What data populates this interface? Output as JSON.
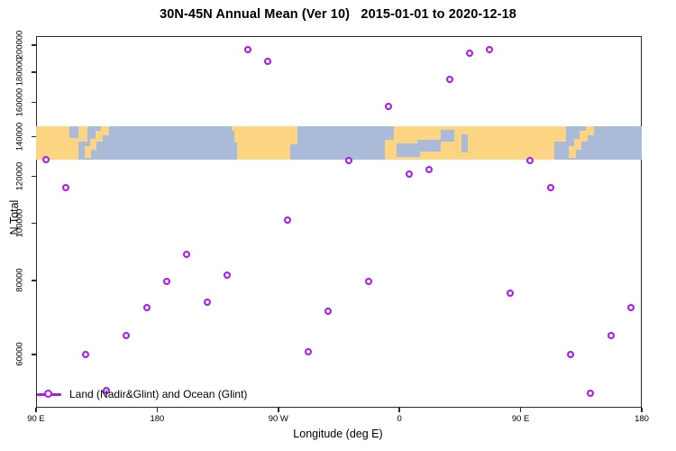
{
  "chart_data": {
    "type": "scatter",
    "title": "30N-45N Annual Mean (Ver 10)   2015-01-01 to 2020-12-18",
    "xlabel": "Longitude (deg E)",
    "ylabel": "N Total",
    "y_scale": "log",
    "grid": false,
    "xlim_unrolled_deg": [
      90,
      540
    ],
    "ylim": [
      48800,
      207200
    ],
    "x_ticks": [
      {
        "lon": 90,
        "label": "90 E"
      },
      {
        "lon": 180,
        "label": "180"
      },
      {
        "lon": 270,
        "label": "90 W"
      },
      {
        "lon": 360,
        "label": "0"
      },
      {
        "lon": 450,
        "label": "90 E"
      },
      {
        "lon": 540,
        "label": "180"
      }
    ],
    "y_ticks": [
      {
        "value": 200000,
        "label": "200000"
      },
      {
        "value": 180000,
        "label": "180000"
      },
      {
        "value": 160000,
        "label": "160000"
      },
      {
        "value": 140000,
        "label": "140000"
      },
      {
        "value": 120000,
        "label": "120000"
      },
      {
        "value": 100000,
        "label": "100000"
      },
      {
        "value": 80000,
        "label": "80000"
      },
      {
        "value": 60000,
        "label": "60000"
      }
    ],
    "legend": {
      "label": "Land (Nadir&Glint) and Ocean (Glint)",
      "position": "bottom-left",
      "marker": "open-circle-on-line"
    },
    "series": [
      {
        "name": "Land (Nadir&Glint) and Ocean (Glint)",
        "marker": "open-circle",
        "color": "#a91de8",
        "points": [
          {
            "lon": 97.5,
            "n": 128000
          },
          {
            "lon": 112.5,
            "n": 114500
          },
          {
            "lon": 127.5,
            "n": 60000
          },
          {
            "lon": 142.5,
            "n": 52000
          },
          {
            "lon": 157.5,
            "n": 64500
          },
          {
            "lon": 172.5,
            "n": 72000
          },
          {
            "lon": 187.5,
            "n": 79500
          },
          {
            "lon": 202.5,
            "n": 88500
          },
          {
            "lon": 217.5,
            "n": 73500
          },
          {
            "lon": 232.5,
            "n": 81500
          },
          {
            "lon": 247.5,
            "n": 196000
          },
          {
            "lon": 262.5,
            "n": 187500
          },
          {
            "lon": 277.5,
            "n": 101000
          },
          {
            "lon": 292.5,
            "n": 60500
          },
          {
            "lon": 307.5,
            "n": 71000
          },
          {
            "lon": 322.5,
            "n": 127500
          },
          {
            "lon": 337.5,
            "n": 79700
          },
          {
            "lon": 352.5,
            "n": 157000
          },
          {
            "lon": 367.5,
            "n": 121000
          },
          {
            "lon": 382.5,
            "n": 123200
          },
          {
            "lon": 397.5,
            "n": 174500
          },
          {
            "lon": 412.5,
            "n": 193700
          },
          {
            "lon": 427.5,
            "n": 196500
          },
          {
            "lon": 442.5,
            "n": 76000
          },
          {
            "lon": 457.5,
            "n": 127500
          },
          {
            "lon": 472.5,
            "n": 114500
          },
          {
            "lon": 487.5,
            "n": 60000
          },
          {
            "lon": 502.5,
            "n": 51500
          },
          {
            "lon": 517.5,
            "n": 64500
          },
          {
            "lon": 532.5,
            "n": 72000
          }
        ]
      }
    ],
    "map_band": {
      "description": "world land/ocean strip for latitude 30N-45N",
      "top_value": 146000,
      "bottom_value": 128000,
      "ocean_color": "#a9bbd8",
      "land_color": "#fcd583",
      "land": [
        {
          "from": 90,
          "to": 121.5,
          "top": 0,
          "bottom": 1
        },
        {
          "from": 121.5,
          "to": 128,
          "top": 0,
          "bottom": 0.45
        },
        {
          "from": 235,
          "to": 284,
          "top": 0,
          "bottom": 1
        },
        {
          "from": 349,
          "to": 418.5,
          "top": 0,
          "bottom": 1
        },
        {
          "from": 418.5,
          "to": 484,
          "top": 0,
          "bottom": 1
        }
      ],
      "seas": [
        {
          "from": 115,
          "to": 121.5,
          "top": 0,
          "bottom": 0.35
        },
        {
          "from": 235,
          "to": 239,
          "top": 0.5,
          "bottom": 1
        },
        {
          "from": 235,
          "to": 237,
          "top": 0.15,
          "bottom": 0.5
        },
        {
          "from": 279,
          "to": 284,
          "top": 0.55,
          "bottom": 1
        },
        {
          "from": 349,
          "to": 356,
          "top": 0,
          "bottom": 0.42
        },
        {
          "from": 358,
          "to": 375,
          "top": 0.52,
          "bottom": 0.92
        },
        {
          "from": 373,
          "to": 391,
          "top": 0.4,
          "bottom": 0.75
        },
        {
          "from": 391,
          "to": 401,
          "top": 0.12,
          "bottom": 0.45
        },
        {
          "from": 406,
          "to": 411,
          "top": 0.25,
          "bottom": 0.78
        },
        {
          "from": 475,
          "to": 484,
          "top": 0.45,
          "bottom": 1
        }
      ],
      "islands": [
        {
          "from": 126,
          "to": 131,
          "top": 0.6,
          "bottom": 0.95
        },
        {
          "from": 130,
          "to": 135,
          "top": 0.38,
          "bottom": 0.7
        },
        {
          "from": 134,
          "to": 139.5,
          "top": 0.15,
          "bottom": 0.45
        },
        {
          "from": 138.5,
          "to": 144.5,
          "top": 0,
          "bottom": 0.28
        },
        {
          "from": 486,
          "to": 491,
          "top": 0.6,
          "bottom": 0.95
        },
        {
          "from": 490,
          "to": 495,
          "top": 0.38,
          "bottom": 0.7
        },
        {
          "from": 494,
          "to": 499.5,
          "top": 0.15,
          "bottom": 0.45
        },
        {
          "from": 498.5,
          "to": 504.5,
          "top": 0,
          "bottom": 0.28
        }
      ]
    }
  }
}
